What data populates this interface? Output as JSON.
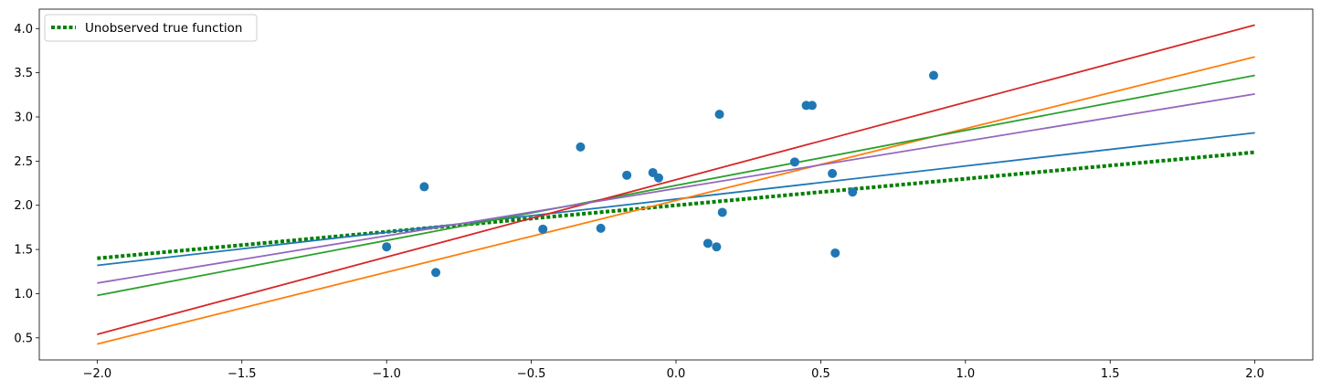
{
  "chart_data": {
    "type": "line",
    "title": "",
    "xlabel": "",
    "ylabel": "",
    "xlim": [
      -2.2,
      2.2
    ],
    "ylim": [
      0.25,
      4.22
    ],
    "grid": false,
    "legend_position": "top-left",
    "x_ticks": [
      -2.0,
      -1.5,
      -1.0,
      -0.5,
      0.0,
      0.5,
      1.0,
      1.5,
      2.0
    ],
    "x_tick_labels": [
      "−2.0",
      "−1.5",
      "−1.0",
      "−0.5",
      "0.0",
      "0.5",
      "1.0",
      "1.5",
      "2.0"
    ],
    "y_ticks": [
      0.5,
      1.0,
      1.5,
      2.0,
      2.5,
      3.0,
      3.5,
      4.0
    ],
    "y_tick_labels": [
      "0.5",
      "1.0",
      "1.5",
      "2.0",
      "2.5",
      "3.0",
      "3.5",
      "4.0"
    ],
    "true_function": {
      "name": "Unobserved true function",
      "x": [
        -2.0,
        2.0
      ],
      "y": [
        1.4,
        2.6
      ],
      "color": "#008000",
      "style": "dotted"
    },
    "fitted_lines": [
      {
        "x": [
          -2.0,
          2.0
        ],
        "y": [
          1.32,
          2.82
        ],
        "color": "#1f77b4"
      },
      {
        "x": [
          -2.0,
          2.0
        ],
        "y": [
          0.43,
          3.68
        ],
        "color": "#ff7f0e"
      },
      {
        "x": [
          -2.0,
          2.0
        ],
        "y": [
          0.98,
          3.47
        ],
        "color": "#2ca02c"
      },
      {
        "x": [
          -2.0,
          2.0
        ],
        "y": [
          0.54,
          4.04
        ],
        "color": "#d62728"
      },
      {
        "x": [
          -2.0,
          2.0
        ],
        "y": [
          1.12,
          3.26
        ],
        "color": "#9467bd"
      }
    ],
    "scatter": {
      "color": "#1f77b4",
      "points": [
        {
          "x": -1.0,
          "y": 1.53
        },
        {
          "x": -0.87,
          "y": 2.21
        },
        {
          "x": -0.83,
          "y": 1.24
        },
        {
          "x": -0.46,
          "y": 1.73
        },
        {
          "x": -0.33,
          "y": 2.66
        },
        {
          "x": -0.26,
          "y": 1.74
        },
        {
          "x": -0.17,
          "y": 2.34
        },
        {
          "x": -0.08,
          "y": 2.37
        },
        {
          "x": -0.06,
          "y": 2.31
        },
        {
          "x": 0.11,
          "y": 1.57
        },
        {
          "x": 0.14,
          "y": 1.53
        },
        {
          "x": 0.15,
          "y": 3.03
        },
        {
          "x": 0.16,
          "y": 1.92
        },
        {
          "x": 0.41,
          "y": 2.49
        },
        {
          "x": 0.45,
          "y": 3.13
        },
        {
          "x": 0.47,
          "y": 3.13
        },
        {
          "x": 0.54,
          "y": 2.36
        },
        {
          "x": 0.55,
          "y": 1.46
        },
        {
          "x": 0.61,
          "y": 2.15
        },
        {
          "x": 0.89,
          "y": 3.47
        }
      ]
    }
  }
}
